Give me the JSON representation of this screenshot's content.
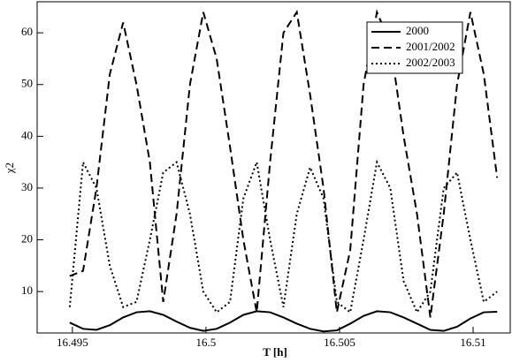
{
  "chart_data": {
    "type": "line",
    "xlabel": "T [h]",
    "ylabel": "χ2",
    "x": [
      16.4949,
      16.4954,
      16.4959,
      16.4964,
      16.4969,
      16.4974,
      16.4979,
      16.4984,
      16.4989,
      16.4994,
      16.4999,
      16.5004,
      16.5009,
      16.5014,
      16.5019,
      16.5024,
      16.5029,
      16.5034,
      16.5039,
      16.5044,
      16.5049,
      16.5054,
      16.5059,
      16.5064,
      16.5069,
      16.5074,
      16.5079,
      16.5084,
      16.5089,
      16.5094,
      16.5099,
      16.5104,
      16.5109
    ],
    "series": [
      {
        "name": "2000",
        "color": "#000000",
        "dash": "solid",
        "values": [
          4,
          2.8,
          2.6,
          3.5,
          5,
          6,
          6.2,
          5.5,
          4.2,
          3,
          2.4,
          2.8,
          4,
          5.5,
          6.2,
          6,
          5,
          3.8,
          2.8,
          2.3,
          2.5,
          3.8,
          5.3,
          6.2,
          6,
          5,
          3.8,
          2.6,
          2.4,
          3.2,
          4.8,
          6,
          6.1
        ]
      },
      {
        "name": "2001/2002",
        "color": "#000000",
        "dash": "dashed",
        "values": [
          13,
          14,
          30,
          52,
          62,
          50,
          35,
          8,
          25,
          50,
          64,
          55,
          38,
          20,
          6,
          35,
          60,
          64,
          48,
          30,
          6,
          18,
          50,
          64,
          58,
          40,
          25,
          5,
          25,
          50,
          64,
          52,
          32
        ]
      },
      {
        "name": "2002/2003",
        "color": "#000000",
        "dash": "dotted",
        "values": [
          7,
          35,
          30,
          15,
          7,
          8,
          20,
          33,
          35,
          25,
          10,
          6,
          8,
          28,
          35,
          20,
          7,
          25,
          34,
          28,
          8,
          6,
          20,
          35,
          30,
          12,
          6,
          10,
          30,
          33,
          20,
          8,
          10
        ]
      }
    ],
    "xlim": [
      16.49368,
      16.51139
    ],
    "xticks": [
      16.495,
      {
        "value": 16.5,
        "label": "16.5"
      },
      16.505,
      16.51
    ],
    "ylim": [
      2,
      66
    ],
    "yticks": [
      10,
      20,
      30,
      40,
      50,
      60
    ],
    "legend": "upper right"
  }
}
